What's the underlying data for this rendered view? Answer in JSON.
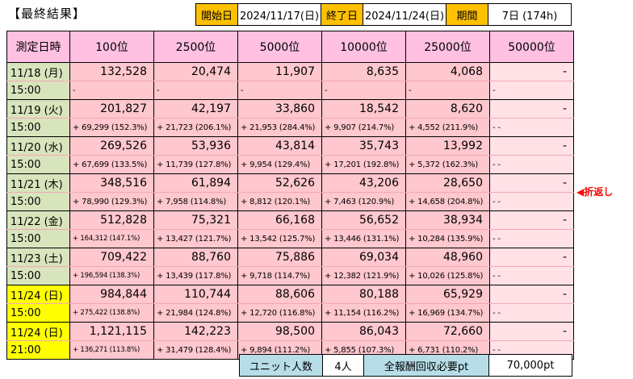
{
  "title": "【最終結果】",
  "header": {
    "start_label": "開始日",
    "start_value": "2024/11/17(日)",
    "end_label": "終了日",
    "end_value": "2024/11/24(日)",
    "period_label": "期間",
    "period_value": "7日 (174h)"
  },
  "table": {
    "corner": "測定日時",
    "columns": [
      "100位",
      "2500位",
      "5000位",
      "10000位",
      "25000位",
      "50000位"
    ],
    "rows": [
      {
        "date": "11/18 (月)",
        "time": "15:00",
        "highlight": false,
        "values": [
          "132,528",
          "20,474",
          "11,907",
          "8,635",
          "4,068",
          "-"
        ],
        "diffs": [
          "-",
          "-",
          "-",
          "-",
          "-",
          "-"
        ]
      },
      {
        "date": "11/19 (火)",
        "time": "15:00",
        "highlight": false,
        "values": [
          "201,827",
          "42,197",
          "33,860",
          "18,542",
          "8,620",
          "-"
        ],
        "diffs": [
          "+ 69,299  (152.3%)",
          "+ 21,723  (206.1%)",
          "+ 21,953  (284.4%)",
          "+ 9,907  (214.7%)",
          "+ 4,552  (211.9%)",
          "-              -"
        ]
      },
      {
        "date": "11/20 (水)",
        "time": "15:00",
        "highlight": false,
        "values": [
          "269,526",
          "53,936",
          "43,814",
          "35,743",
          "13,992",
          "-"
        ],
        "diffs": [
          "+ 67,699  (133.5%)",
          "+ 11,739  (127.8%)",
          "+ 9,954  (129.4%)",
          "+ 17,201  (192.8%)",
          "+ 5,372  (162.3%)",
          "-              -"
        ]
      },
      {
        "date": "11/21 (木)",
        "time": "15:00",
        "highlight": false,
        "values": [
          "348,516",
          "61,894",
          "52,626",
          "43,206",
          "28,650",
          "-"
        ],
        "diffs": [
          "+ 78,990  (129.3%)",
          "+ 7,958  (114.8%)",
          "+ 8,812  (120.1%)",
          "+ 7,463  (120.9%)",
          "+ 14,658  (204.8%)",
          "-              -"
        ]
      },
      {
        "date": "11/22 (金)",
        "time": "15:00",
        "highlight": false,
        "values": [
          "512,828",
          "75,321",
          "66,168",
          "56,652",
          "38,934",
          "-"
        ],
        "diffs": [
          "+ 164,312  (147.1%)",
          "+ 13,427  (121.7%)",
          "+ 13,542  (125.7%)",
          "+ 13,446  (131.1%)",
          "+ 10,284  (135.9%)",
          "-              -"
        ]
      },
      {
        "date": "11/23 (土)",
        "time": "15:00",
        "highlight": false,
        "values": [
          "709,422",
          "88,760",
          "75,886",
          "69,034",
          "48,960",
          "-"
        ],
        "diffs": [
          "+ 196,594  (138.3%)",
          "+ 13,439  (117.8%)",
          "+ 9,718  (114.7%)",
          "+ 12,382  (121.9%)",
          "+ 10,026  (125.8%)",
          "-              -"
        ]
      },
      {
        "date": "11/24 (日)",
        "time": "15:00",
        "highlight": true,
        "values": [
          "984,844",
          "110,744",
          "88,606",
          "80,188",
          "65,929",
          "-"
        ],
        "diffs": [
          "+ 275,422  (138.8%)",
          "+ 21,984  (124.8%)",
          "+ 12,720  (116.8%)",
          "+ 11,154  (116.2%)",
          "+ 16,969  (134.7%)",
          "-              -"
        ]
      },
      {
        "date": "11/24 (日)",
        "time": "21:00",
        "highlight": true,
        "values": [
          "1,121,115",
          "142,223",
          "98,500",
          "86,043",
          "72,660",
          "-"
        ],
        "diffs": [
          "+ 136,271  (113.8%)",
          "+ 31,479  (128.4%)",
          "+ 9,894  (111.2%)",
          "+ 5,855  (107.3%)",
          "+ 6,731  (110.2%)",
          "-              -"
        ]
      }
    ]
  },
  "note": "◀折返し",
  "footer": {
    "units_label": "ユニット人数",
    "units_value": "4人",
    "reward_label": "全報酬回収必要pt",
    "reward_value": "70,000pt"
  },
  "colors": {
    "header_orange": "#ffc000",
    "rank_header_pink": "#ffc0e1",
    "cell_pink": "#ffc7ce",
    "date_green": "#d8e4bc",
    "highlight_yellow": "#ffff00",
    "footer_blue": "#b7dee8",
    "note_red": "#ff0000"
  }
}
